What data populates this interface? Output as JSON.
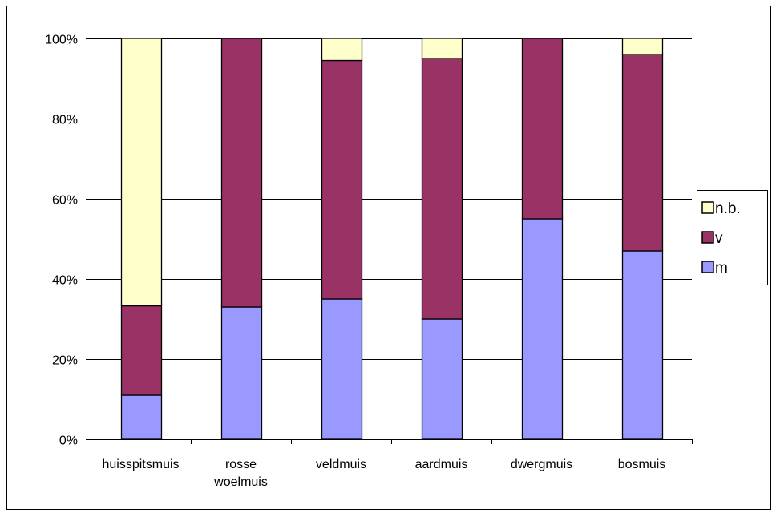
{
  "chart_data": {
    "type": "bar",
    "stacked": true,
    "percent_stacked": true,
    "categories": [
      "huisspitsmuis",
      "rosse woelmuis",
      "veldmuis",
      "aardmuis",
      "dwergmuis",
      "bosmuis"
    ],
    "category_lines": [
      [
        "huisspitsmuis"
      ],
      [
        "rosse",
        "woelmuis"
      ],
      [
        "veldmuis"
      ],
      [
        "aardmuis"
      ],
      [
        "dwergmuis"
      ],
      [
        "bosmuis"
      ]
    ],
    "series": [
      {
        "name": "m",
        "values": [
          11,
          33,
          35,
          30,
          55,
          47
        ]
      },
      {
        "name": "v",
        "values": [
          22.3,
          67,
          59.5,
          65,
          45,
          49
        ]
      },
      {
        "name": "n.b.",
        "values": [
          66.7,
          0,
          5.5,
          5,
          0,
          4
        ]
      }
    ],
    "colors": {
      "m": "#9999ff",
      "v": "#993366",
      "n.b.": "#ffffcc"
    },
    "y_ticks": [
      "0%",
      "20%",
      "40%",
      "60%",
      "80%",
      "100%"
    ],
    "ylim": [
      0,
      100
    ],
    "grid": true,
    "legend_placement": "right",
    "legend_order": [
      "n.b.",
      "v",
      "m"
    ],
    "title": "",
    "xlabel": "",
    "ylabel": ""
  }
}
